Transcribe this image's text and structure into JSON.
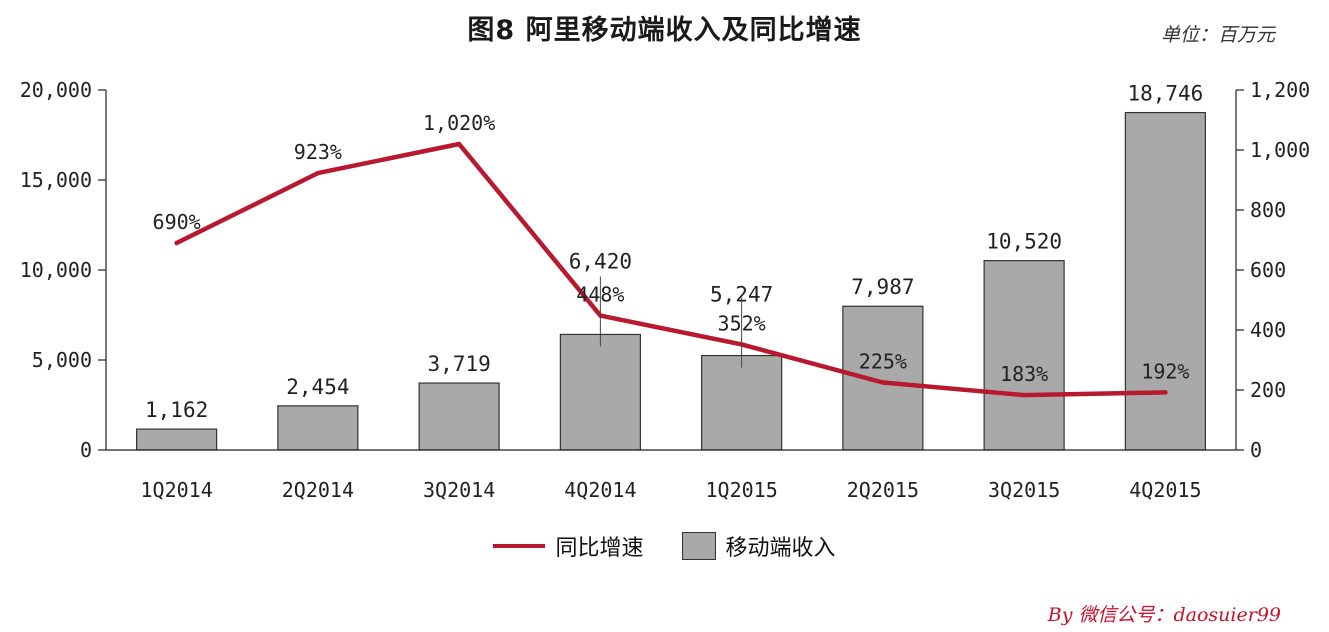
{
  "title": "图8 阿里移动端收入及同比增速",
  "unit_label": "单位：百万元",
  "credit": "By 微信公号：daosuier99",
  "legend": {
    "line_label": "同比增速",
    "bar_label": "移动端收入"
  },
  "colors": {
    "bar_fill": "#a9a9a9",
    "bar_stroke": "#333333",
    "line": "#b8192f"
  },
  "chart_data": {
    "type": "bar+line",
    "categories": [
      "1Q2014",
      "2Q2014",
      "3Q2014",
      "4Q2014",
      "1Q2015",
      "2Q2015",
      "3Q2015",
      "4Q2015"
    ],
    "series": [
      {
        "name": "移动端收入",
        "type": "bar",
        "axis": "left",
        "values": [
          1162,
          2454,
          3719,
          6420,
          5247,
          7987,
          10520,
          18746
        ],
        "labels": [
          "1,162",
          "2,454",
          "3,719",
          "6,420",
          "5,247",
          "7,987",
          "10,520",
          "18,746"
        ]
      },
      {
        "name": "同比增速",
        "type": "line",
        "axis": "right",
        "values": [
          690,
          923,
          1020,
          448,
          352,
          225,
          183,
          192
        ],
        "labels": [
          "690%",
          "923%",
          "1,020%",
          "448%",
          "352%",
          "225%",
          "183%",
          "192%"
        ]
      }
    ],
    "y_left": {
      "lim": [
        0,
        20000
      ],
      "ticks": [
        0,
        5000,
        10000,
        15000,
        20000
      ],
      "tick_labels": [
        "0",
        "5,000",
        "10,000",
        "15,000",
        "20,000"
      ]
    },
    "y_right": {
      "lim": [
        0,
        1200
      ],
      "ticks": [
        0,
        200,
        400,
        600,
        800,
        1000,
        1200
      ],
      "tick_labels": [
        "0",
        "200",
        "400",
        "600",
        "800",
        "1,000",
        "1,200"
      ]
    },
    "grid": false,
    "legend_position": "bottom"
  }
}
